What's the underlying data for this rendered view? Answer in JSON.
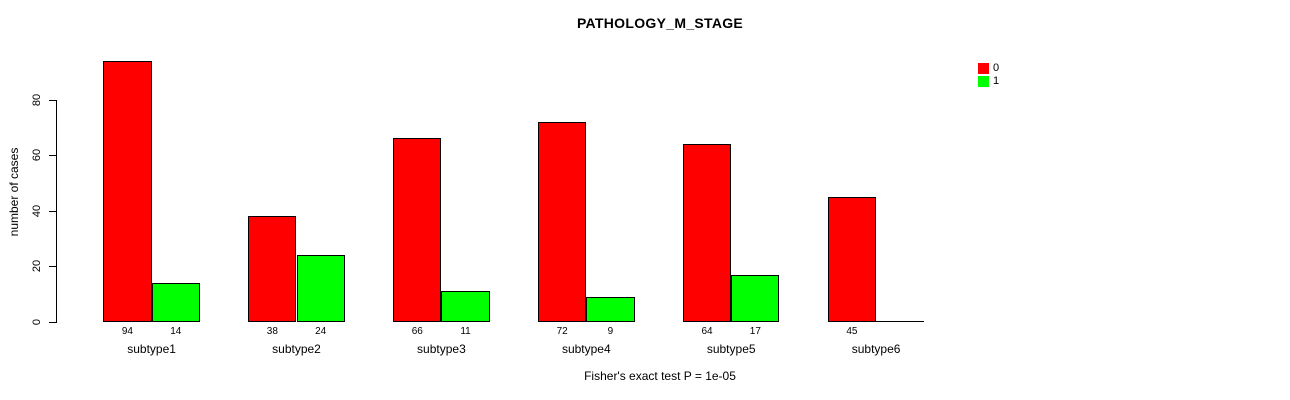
{
  "chart_data": {
    "type": "bar",
    "title": "PATHOLOGY_M_STAGE",
    "ylabel": "number of cases",
    "footnote": "Fisher's exact test P = 1e-05",
    "categories": [
      "subtype1",
      "subtype2",
      "subtype3",
      "subtype4",
      "subtype5",
      "subtype6"
    ],
    "series": [
      {
        "name": "0",
        "color": "#ff0000",
        "values": [
          94,
          38,
          66,
          72,
          64,
          45
        ],
        "bar_labels": [
          "94",
          "38",
          "66",
          "72",
          "64",
          "45"
        ]
      },
      {
        "name": "1",
        "color": "#00ff00",
        "values": [
          14,
          24,
          11,
          9,
          17,
          0
        ],
        "bar_labels": [
          "14",
          "24",
          "11",
          "9",
          "17",
          ""
        ]
      }
    ],
    "yticks": [
      0,
      20,
      40,
      60,
      80
    ],
    "ylim": [
      0,
      80
    ],
    "grid": false,
    "legend_position": "top-right",
    "axis_color": "#000000",
    "bar_border_color": "#000000"
  }
}
